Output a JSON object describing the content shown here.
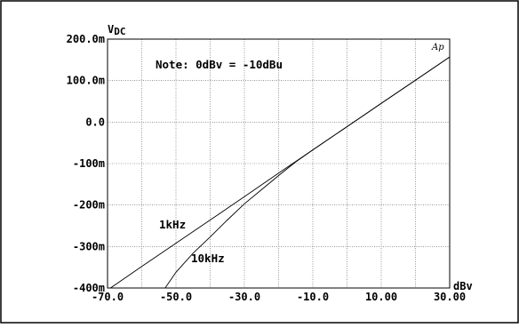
{
  "chart_data": {
    "type": "line",
    "title": "",
    "xlabel": "dBv",
    "ylabel": "V",
    "ylabel_sub": "DC",
    "xlim": [
      -70,
      30
    ],
    "ylim": [
      -400,
      200
    ],
    "y_units": "mV",
    "grid": true,
    "x_ticks": [
      -70,
      -50,
      -30,
      -10,
      10,
      30
    ],
    "x_tick_labels": [
      "-70.0",
      "-50.0",
      "-30.0",
      "-10.0",
      "10.00",
      "30.00"
    ],
    "y_ticks": [
      200,
      100,
      0,
      -100,
      -200,
      -300,
      -400
    ],
    "y_tick_labels": [
      "200.0m",
      "100.0m",
      "0.0",
      "-100m",
      "-200m",
      "-300m",
      "-400m"
    ],
    "annotations": [
      "Note: 0dBv = -10dBu",
      "1kHz",
      "10kHz"
    ],
    "logo": "Ap",
    "series": [
      {
        "name": "1kHz",
        "x": [
          -70,
          -60,
          -50,
          -40,
          -30,
          -20,
          -10,
          0,
          10,
          20,
          30
        ],
        "y": [
          -405,
          -348,
          -292,
          -236,
          -180,
          -123,
          -67,
          -11,
          45,
          101,
          157
        ]
      },
      {
        "name": "10kHz",
        "x": [
          -54,
          -50,
          -45,
          -40,
          -35,
          -30,
          -25,
          -20,
          -15,
          -10,
          -5,
          0,
          10,
          20,
          30
        ],
        "y": [
          -410,
          -362,
          -316,
          -277,
          -236,
          -197,
          -163,
          -129,
          -96,
          -67,
          -39,
          -11,
          45,
          101,
          157
        ]
      }
    ]
  }
}
